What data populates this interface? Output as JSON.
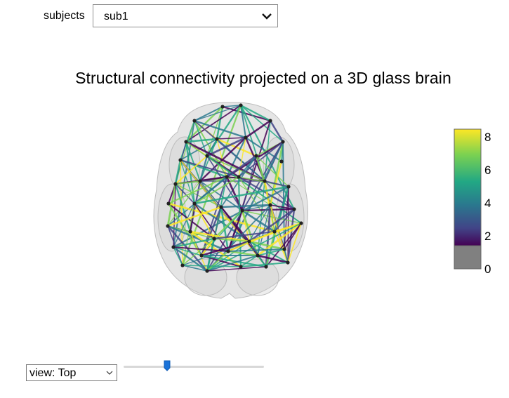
{
  "subjects": {
    "label": "subjects",
    "selected": "sub1"
  },
  "figure": {
    "title": "Structural connectivity projected on a 3D glass brain"
  },
  "colorbar": {
    "ticks": [
      "8",
      "6",
      "4",
      "2",
      "0"
    ],
    "range": [
      0,
      8.6
    ],
    "colors": [
      "#fde725",
      "#7ad151",
      "#22a884",
      "#2a788e",
      "#414487",
      "#440154",
      "#808080"
    ]
  },
  "view": {
    "selected": "view: Top"
  },
  "slider": {
    "value": 0.31
  },
  "icons": {
    "dropdown": "chevron-down-icon"
  },
  "accent_color": "#1a73d9"
}
